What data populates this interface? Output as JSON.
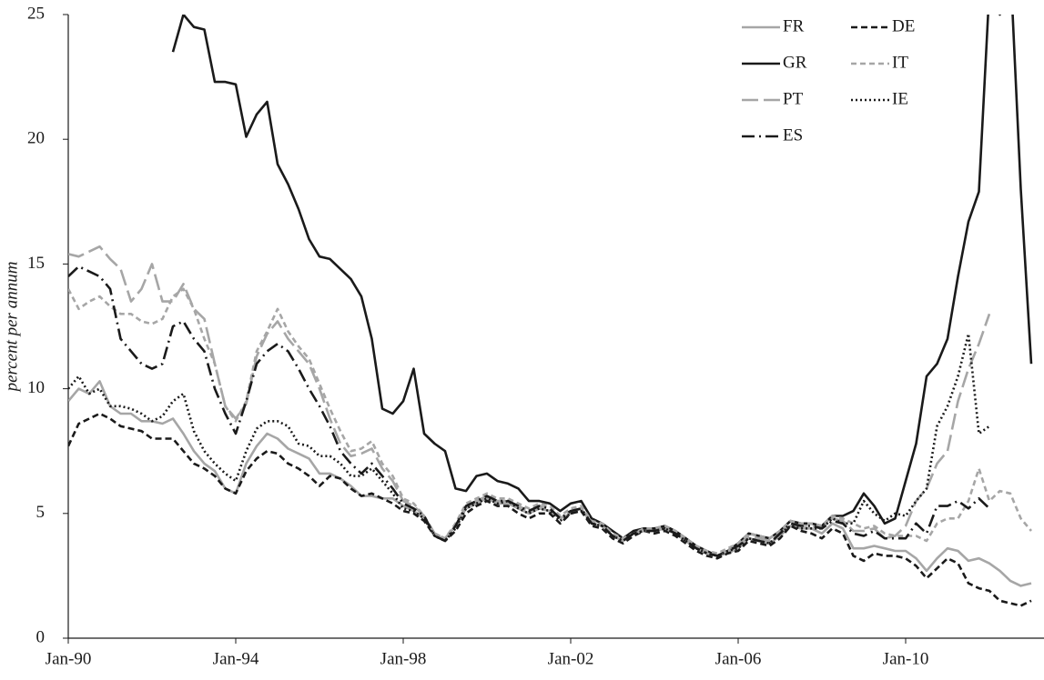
{
  "chart_data": {
    "type": "line",
    "ylabel": "percent per annum",
    "categories": [
      "Jan-90",
      "Apr-90",
      "Jul-90",
      "Oct-90",
      "Jan-91",
      "Apr-91",
      "Jul-91",
      "Oct-91",
      "Jan-92",
      "Apr-92",
      "Jul-92",
      "Oct-92",
      "Jan-93",
      "Apr-93",
      "Jul-93",
      "Oct-93",
      "Jan-94",
      "Apr-94",
      "Jul-94",
      "Oct-94",
      "Jan-95",
      "Apr-95",
      "Jul-95",
      "Oct-95",
      "Jan-96",
      "Apr-96",
      "Jul-96",
      "Oct-96",
      "Jan-97",
      "Apr-97",
      "Jul-97",
      "Oct-97",
      "Jan-98",
      "Apr-98",
      "Jul-98",
      "Oct-98",
      "Jan-99",
      "Apr-99",
      "Jul-99",
      "Oct-99",
      "Jan-00",
      "Apr-00",
      "Jul-00",
      "Oct-00",
      "Jan-01",
      "Apr-01",
      "Jul-01",
      "Oct-01",
      "Jan-02",
      "Apr-02",
      "Jul-02",
      "Oct-02",
      "Jan-03",
      "Apr-03",
      "Jul-03",
      "Oct-03",
      "Jan-04",
      "Apr-04",
      "Jul-04",
      "Oct-04",
      "Jan-05",
      "Apr-05",
      "Jul-05",
      "Oct-05",
      "Jan-06",
      "Apr-06",
      "Jul-06",
      "Oct-06",
      "Jan-07",
      "Apr-07",
      "Jul-07",
      "Oct-07",
      "Jan-08",
      "Apr-08",
      "Jul-08",
      "Oct-08",
      "Jan-09",
      "Apr-09",
      "Jul-09",
      "Oct-09",
      "Jan-10",
      "Apr-10",
      "Jul-10",
      "Oct-10",
      "Jan-11",
      "Apr-11",
      "Jul-11",
      "Oct-11",
      "Jan-12",
      "Apr-12",
      "Jul-12",
      "Oct-12",
      "Jan-13"
    ],
    "xticks": [
      "Jan-90",
      "Jan-94",
      "Jan-98",
      "Jan-02",
      "Jan-06",
      "Jan-10"
    ],
    "ylim": [
      0,
      25
    ],
    "yticks": [
      0,
      5,
      10,
      15,
      20,
      25
    ],
    "legend": "upper right",
    "series": [
      {
        "name": "FR",
        "color": "#a6a6a6",
        "dash": "none",
        "values": [
          9.5,
          10,
          9.8,
          10.3,
          9.3,
          9,
          9,
          8.7,
          8.7,
          8.6,
          8.8,
          8.2,
          7.5,
          7,
          6.7,
          6,
          5.8,
          7,
          7.7,
          8.2,
          8,
          7.6,
          7.4,
          7.2,
          6.6,
          6.6,
          6.4,
          6.1,
          5.7,
          5.7,
          5.6,
          5.6,
          5.3,
          5.1,
          4.8,
          4.1,
          4,
          4.5,
          5.2,
          5.4,
          5.6,
          5.4,
          5.4,
          5.2,
          5,
          5.2,
          5.1,
          4.8,
          5,
          5.2,
          4.6,
          4.5,
          4.1,
          3.9,
          4.2,
          4.3,
          4.3,
          4.4,
          4.2,
          3.9,
          3.6,
          3.4,
          3.3,
          3.4,
          3.6,
          4,
          3.9,
          3.8,
          4.1,
          4.5,
          4.4,
          4.4,
          4.2,
          4.6,
          4.4,
          3.6,
          3.6,
          3.7,
          3.6,
          3.5,
          3.5,
          3.2,
          2.7,
          3.2,
          3.6,
          3.5,
          3.1,
          3.2,
          3,
          2.7,
          2.3,
          2.1,
          2.2
        ]
      },
      {
        "name": "DE",
        "color": "#1a1a1a",
        "dash": "7,4",
        "values": [
          7.7,
          8.6,
          8.8,
          9,
          8.8,
          8.5,
          8.4,
          8.3,
          8,
          8,
          8,
          7.5,
          7,
          6.8,
          6.5,
          6,
          5.8,
          6.7,
          7.2,
          7.5,
          7.4,
          7,
          6.8,
          6.5,
          6.1,
          6.5,
          6.4,
          6,
          5.7,
          5.8,
          5.6,
          5.4,
          5.1,
          5,
          4.7,
          4.1,
          3.9,
          4.3,
          5,
          5.3,
          5.5,
          5.3,
          5.3,
          5,
          4.8,
          5,
          5,
          4.6,
          5,
          5.1,
          4.5,
          4.4,
          4,
          3.8,
          4.1,
          4.3,
          4.2,
          4.3,
          4.1,
          3.8,
          3.5,
          3.3,
          3.2,
          3.4,
          3.5,
          3.9,
          3.8,
          3.7,
          4,
          4.5,
          4.3,
          4.2,
          4,
          4.4,
          4.2,
          3.3,
          3.1,
          3.4,
          3.3,
          3.3,
          3.2,
          2.9,
          2.4,
          2.8,
          3.2,
          3,
          2.2,
          2,
          1.9,
          1.5,
          1.4,
          1.3,
          1.5
        ]
      },
      {
        "name": "GR",
        "color": "#1a1a1a",
        "dash": "none",
        "values": [
          null,
          null,
          null,
          null,
          null,
          null,
          null,
          null,
          null,
          null,
          23.5,
          25,
          24.5,
          24.4,
          22.3,
          22.3,
          22.2,
          20.1,
          21,
          21.5,
          19,
          18.2,
          17.2,
          16,
          15.3,
          15.2,
          14.8,
          14.4,
          13.7,
          12,
          9.2,
          9,
          9.5,
          10.8,
          8.2,
          7.8,
          7.5,
          6,
          5.9,
          6.5,
          6.6,
          6.3,
          6.2,
          6,
          5.5,
          5.5,
          5.4,
          5.1,
          5.4,
          5.5,
          4.8,
          4.6,
          4.3,
          4,
          4.3,
          4.4,
          4.4,
          4.5,
          4.3,
          4,
          3.7,
          3.5,
          3.3,
          3.5,
          3.8,
          4.2,
          4.1,
          4,
          4.3,
          4.7,
          4.6,
          4.6,
          4.5,
          4.9,
          4.9,
          5.1,
          5.8,
          5.3,
          4.6,
          4.8,
          6.3,
          7.8,
          10.5,
          11,
          12,
          14.5,
          16.7,
          17.9,
          26,
          25,
          27,
          18,
          11
        ]
      },
      {
        "name": "IT",
        "color": "#a6a6a6",
        "dash": "6,4",
        "values": [
          14,
          13.2,
          13.5,
          13.7,
          13.3,
          13,
          13,
          12.7,
          12.6,
          12.8,
          13.7,
          14,
          13.2,
          12,
          11,
          9.3,
          8.7,
          9.5,
          11.5,
          12.3,
          13.2,
          12.3,
          11.7,
          11.2,
          10.2,
          9.2,
          8.3,
          7.5,
          7.6,
          7.9,
          7,
          6.5,
          5.6,
          5.4,
          4.9,
          4.2,
          4,
          4.6,
          5.4,
          5.6,
          5.8,
          5.6,
          5.6,
          5.4,
          5.2,
          5.4,
          5.3,
          4.9,
          5.2,
          5.3,
          4.7,
          4.6,
          4.2,
          4,
          4.2,
          4.4,
          4.4,
          4.5,
          4.3,
          4,
          3.7,
          3.5,
          3.4,
          3.6,
          3.8,
          4.2,
          4.1,
          4,
          4.3,
          4.7,
          4.6,
          4.6,
          4.5,
          4.9,
          4.8,
          4.6,
          4.4,
          4.5,
          4.2,
          4.1,
          4.1,
          4.1,
          3.9,
          4.6,
          4.8,
          4.8,
          5.5,
          6.8,
          5.5,
          5.9,
          5.8,
          4.8,
          4.3
        ]
      },
      {
        "name": "PT",
        "color": "#a6a6a6",
        "dash": "18,6",
        "values": [
          15.4,
          15.3,
          15.5,
          15.7,
          15.2,
          14.8,
          13.5,
          14,
          15,
          13.5,
          13.5,
          14.2,
          13.2,
          12.8,
          11,
          9.3,
          8.8,
          9.4,
          11.3,
          12.2,
          12.7,
          12,
          11.5,
          11,
          10,
          8.8,
          7.8,
          7.3,
          7.4,
          7.6,
          6.8,
          6.3,
          5.5,
          5.3,
          4.9,
          4.2,
          4,
          4.5,
          5.3,
          5.5,
          5.7,
          5.5,
          5.5,
          5.3,
          5.1,
          5.3,
          5.2,
          4.8,
          5.1,
          5.2,
          4.6,
          4.5,
          4.1,
          3.9,
          4.2,
          4.3,
          4.3,
          4.4,
          4.2,
          3.9,
          3.6,
          3.4,
          3.3,
          3.5,
          3.7,
          4.1,
          4,
          3.9,
          4.2,
          4.6,
          4.5,
          4.5,
          4.4,
          4.8,
          4.7,
          4.3,
          4.3,
          4.4,
          4,
          4.1,
          4.5,
          5.5,
          6,
          7,
          7.5,
          9.5,
          10.8,
          11.8,
          13,
          null,
          null,
          null,
          null
        ]
      },
      {
        "name": "IE",
        "color": "#1a1a1a",
        "dash": "2,3",
        "values": [
          10,
          10.5,
          9.8,
          10,
          9.3,
          9.3,
          9.2,
          9,
          8.7,
          8.9,
          9.5,
          9.8,
          8.3,
          7.5,
          7,
          6.6,
          6.3,
          7.5,
          8.4,
          8.7,
          8.7,
          8.5,
          7.8,
          7.7,
          7.3,
          7.3,
          7,
          6.5,
          6.5,
          6.8,
          6.3,
          5.8,
          5.2,
          5.1,
          4.8,
          4.1,
          3.9,
          4.4,
          5.2,
          5.4,
          5.6,
          5.4,
          5.5,
          5.2,
          5,
          5.2,
          5.1,
          4.7,
          5,
          5.1,
          4.6,
          4.5,
          4.1,
          3.9,
          4.2,
          4.3,
          4.3,
          4.4,
          4.2,
          3.9,
          3.6,
          3.4,
          3.3,
          3.5,
          3.6,
          4,
          3.9,
          3.8,
          4.2,
          4.5,
          4.4,
          4.4,
          4.4,
          4.8,
          4.6,
          4.6,
          5.5,
          5,
          4.7,
          5,
          4.9,
          5.5,
          6,
          8.5,
          9.3,
          10.5,
          12.2,
          8.2,
          8.5,
          null,
          null,
          null,
          null
        ]
      },
      {
        "name": "ES",
        "color": "#1a1a1a",
        "dash": "14,5,2,5",
        "values": [
          14.5,
          14.9,
          14.7,
          14.5,
          14,
          12,
          11.5,
          11,
          10.8,
          11,
          12.5,
          12.7,
          12,
          11.5,
          10,
          9,
          8.2,
          9.5,
          11,
          11.5,
          11.8,
          11.5,
          10.8,
          10,
          9.3,
          8.5,
          7.5,
          7,
          6.6,
          7,
          6.5,
          6,
          5.4,
          5.2,
          4.9,
          4.1,
          3.9,
          4.5,
          5.3,
          5.5,
          5.7,
          5.5,
          5.5,
          5.3,
          5.1,
          5.3,
          5.2,
          4.8,
          5.1,
          5.2,
          4.6,
          4.5,
          4.1,
          3.9,
          4.2,
          4.3,
          4.3,
          4.4,
          4.2,
          3.9,
          3.6,
          3.4,
          3.3,
          3.5,
          3.7,
          4,
          3.9,
          3.8,
          4.2,
          4.6,
          4.5,
          4.5,
          4.4,
          4.7,
          4.6,
          4.2,
          4.1,
          4.3,
          4,
          4,
          4,
          4.6,
          4.2,
          5.3,
          5.3,
          5.5,
          5.2,
          5.6,
          5.2,
          null,
          null,
          null,
          null
        ]
      }
    ]
  }
}
